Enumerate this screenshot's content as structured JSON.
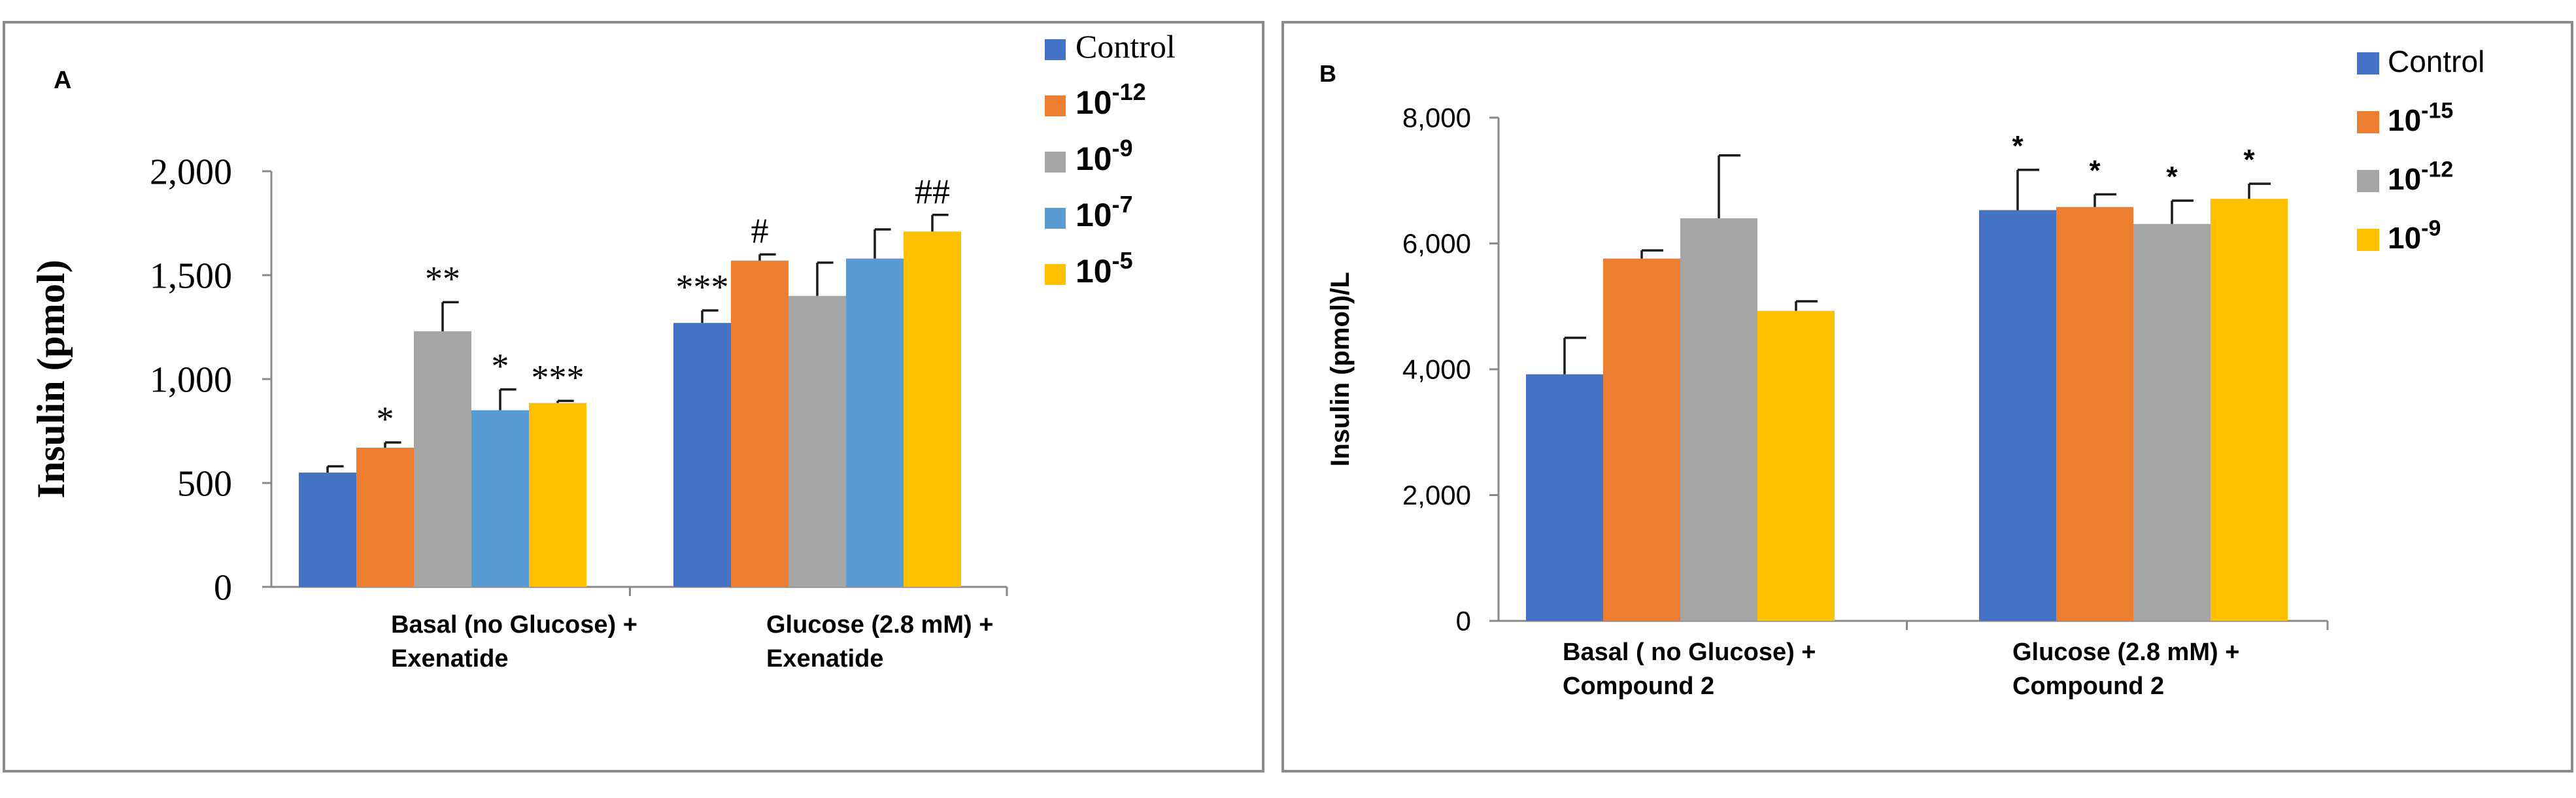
{
  "chart_data": [
    {
      "type": "bar",
      "panel_label": "A",
      "ylabel": "Insulin (pmol)",
      "xlabel": "",
      "ylim": [
        0,
        2000
      ],
      "yticks": [
        "0",
        "500",
        "1,000",
        "1,500",
        "2,000"
      ],
      "ytick_values": [
        0,
        500,
        1000,
        1500,
        2000
      ],
      "grid": false,
      "legend_position": "top-right",
      "categories": [
        [
          "Basal (no Glucose) +",
          "Exenatide"
        ],
        [
          "Glucose (2.8 mM) +",
          "Exenatide"
        ]
      ],
      "series": [
        {
          "name": "Control",
          "legend_base": "Control",
          "legend_exp": "",
          "color": "#4472c4",
          "values": [
            550,
            1270
          ],
          "errors": [
            30,
            60
          ],
          "annotations": [
            "",
            "***"
          ]
        },
        {
          "name": "10-12",
          "legend_base": "10",
          "legend_exp": "-12",
          "color": "#ed7d31",
          "values": [
            670,
            1570
          ],
          "errors": [
            25,
            30
          ],
          "annotations": [
            "*",
            "#"
          ]
        },
        {
          "name": "10-9",
          "legend_base": "10",
          "legend_exp": "-9",
          "color": "#a5a5a5",
          "values": [
            1230,
            1400
          ],
          "errors": [
            140,
            160
          ],
          "annotations": [
            "**",
            ""
          ]
        },
        {
          "name": "10-7",
          "legend_base": "10",
          "legend_exp": "-7",
          "color": "#5b9bd5",
          "values": [
            850,
            1580
          ],
          "errors": [
            100,
            140
          ],
          "annotations": [
            "*",
            ""
          ]
        },
        {
          "name": "10-5",
          "legend_base": "10",
          "legend_exp": "-5",
          "color": "#ffc000",
          "values": [
            885,
            1710
          ],
          "errors": [
            10,
            80
          ],
          "annotations": [
            "***",
            "##"
          ]
        }
      ]
    },
    {
      "type": "bar",
      "panel_label": "B",
      "ylabel": "Insulin (pmol)/L",
      "xlabel": "",
      "ylim": [
        0,
        8000
      ],
      "yticks": [
        "0",
        "2,000",
        "4,000",
        "6,000",
        "8,000"
      ],
      "ytick_values": [
        0,
        2000,
        4000,
        6000,
        8000
      ],
      "grid": false,
      "legend_position": "top-right",
      "categories": [
        [
          "Basal ( no Glucose) +",
          "Compound 2"
        ],
        [
          "Glucose (2.8 mM) +",
          "Compound 2"
        ]
      ],
      "series": [
        {
          "name": "Control",
          "legend_base": "Control",
          "legend_exp": "",
          "color": "#4472c4",
          "values": [
            3920,
            6530
          ],
          "errors": [
            580,
            640
          ],
          "annotations": [
            "",
            "*"
          ]
        },
        {
          "name": "10-15",
          "legend_base": "10",
          "legend_exp": "-15",
          "color": "#ed7d31",
          "values": [
            5760,
            6580
          ],
          "errors": [
            130,
            200
          ],
          "annotations": [
            "",
            "*"
          ]
        },
        {
          "name": "10-12",
          "legend_base": "10",
          "legend_exp": "-12",
          "color": "#a5a5a5",
          "values": [
            6400,
            6310
          ],
          "errors": [
            1000,
            370
          ],
          "annotations": [
            "",
            "*"
          ]
        },
        {
          "name": "10-9",
          "legend_base": "10",
          "legend_exp": "-9",
          "color": "#ffc000",
          "values": [
            4930,
            6710
          ],
          "errors": [
            150,
            240
          ],
          "annotations": [
            "",
            "*"
          ]
        }
      ]
    }
  ]
}
